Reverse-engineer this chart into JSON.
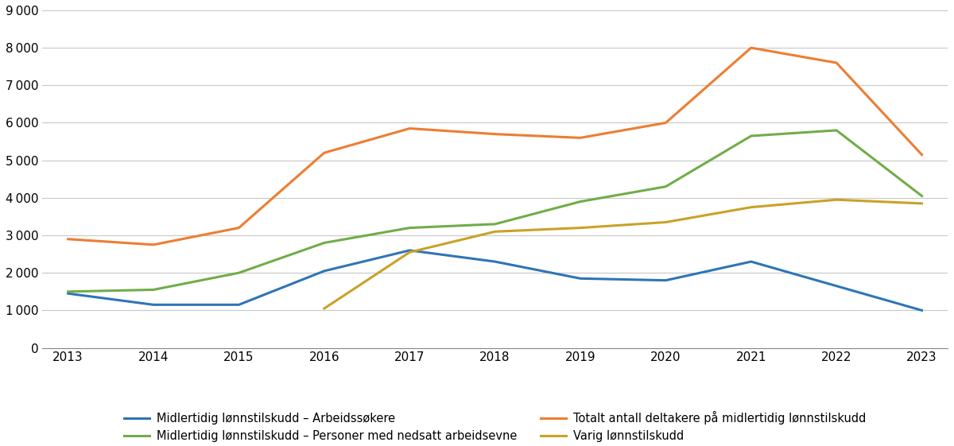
{
  "years": [
    2013,
    2014,
    2015,
    2016,
    2017,
    2018,
    2019,
    2020,
    2021,
    2022,
    2023
  ],
  "midlertidig_arbeidssokere": [
    1450,
    1150,
    1150,
    2050,
    2600,
    2300,
    1850,
    1800,
    2300,
    1650,
    1000
  ],
  "midlertidig_nedsatt": [
    1500,
    1550,
    2000,
    2800,
    3200,
    3300,
    3900,
    4300,
    5650,
    5800,
    4050
  ],
  "totalt_midlertidig": [
    2900,
    2750,
    3200,
    5200,
    5850,
    5700,
    5600,
    6000,
    8000,
    7600,
    5150
  ],
  "varig": [
    null,
    null,
    null,
    1050,
    2550,
    3100,
    3200,
    3350,
    3750,
    3950,
    3850
  ],
  "colors": {
    "midlertidig_arbeidssokere": "#2E75B6",
    "midlertidig_nedsatt": "#70AD47",
    "totalt_midlertidig": "#ED7D31",
    "varig": "#C9A227"
  },
  "legend_labels": {
    "midlertidig_arbeidssokere": "Midlertidig lønnstilskudd – Arbeidssøkere",
    "midlertidig_nedsatt": "Midlertidig lønnstilskudd – Personer med nedsatt arbeidsevne",
    "totalt_midlertidig": "Totalt antall deltakere på midlertidig lønnstilskudd",
    "varig": "Varig lønnstilskudd"
  },
  "ylim": [
    0,
    9000
  ],
  "yticks": [
    0,
    1000,
    2000,
    3000,
    4000,
    5000,
    6000,
    7000,
    8000,
    9000
  ],
  "background_color": "#ffffff",
  "line_width": 2.2,
  "figsize": [
    12.0,
    5.61
  ],
  "dpi": 100
}
